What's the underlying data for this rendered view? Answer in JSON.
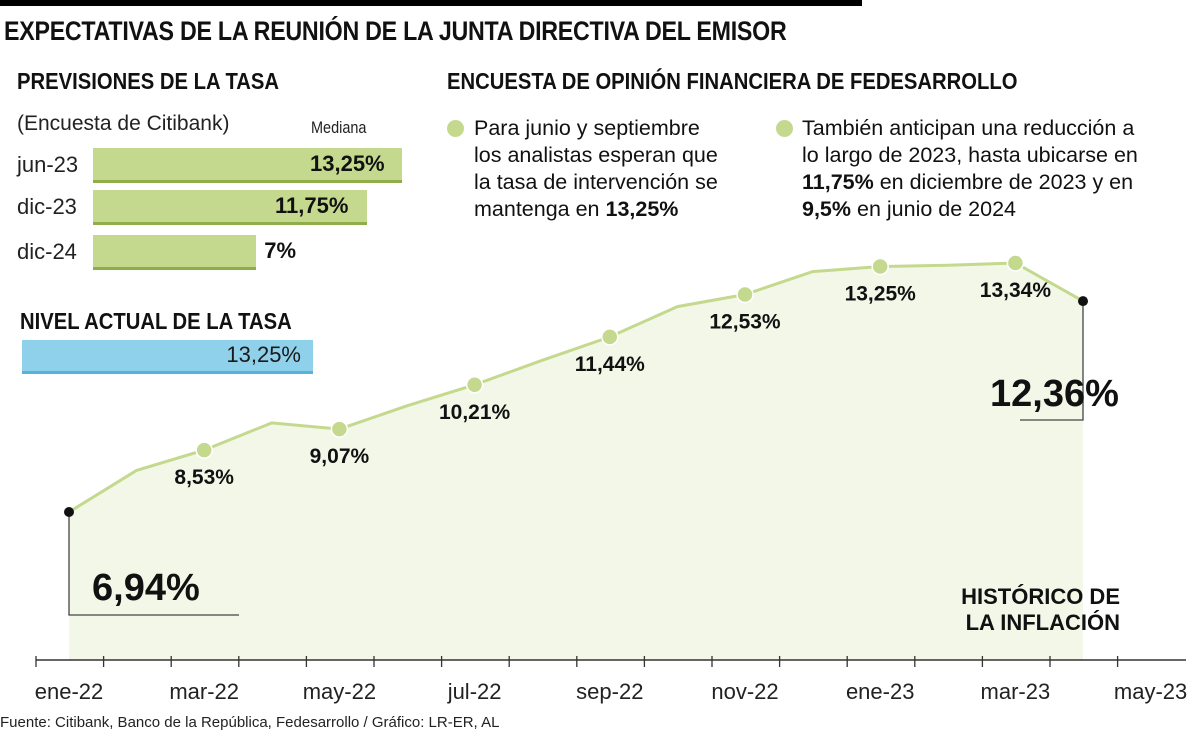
{
  "title": "EXPECTATIVAS DE LA REUNIÓN DE LA JUNTA DIRECTIVA DEL EMISOR",
  "forecast": {
    "heading": "PREVISIONES DE LA TASA",
    "subtitle": "(Encuesta de Citibank)",
    "median_label": "Mediana",
    "rows": [
      {
        "label": "jun-23",
        "value": 13.25,
        "value_text": "13,25%"
      },
      {
        "label": "dic-23",
        "value": 11.75,
        "value_text": "11,75%"
      },
      {
        "label": "dic-24",
        "value": 7,
        "value_text": "7%"
      }
    ]
  },
  "current": {
    "heading": "NIVEL ACTUAL DE LA TASA",
    "value": 13.25,
    "value_text": "13,25%"
  },
  "survey": {
    "heading": "ENCUESTA DE OPINIÓN FINANCIERA DE FEDESARROLLO",
    "point1": {
      "l1": "Para junio y septiembre",
      "l2": "los analistas esperan que",
      "l3": "la tasa de intervención se",
      "l4": "mantenga en",
      "l4b": "13,25%"
    },
    "point2": {
      "l1": "También anticipan una reducción a",
      "l2": "lo largo de 2023, hasta ubicarse en",
      "l3b": "11,75%",
      "l3": " en diciembre de 2023 y en",
      "l4b": "9,5%",
      "l4": " en junio de 2024"
    }
  },
  "chart_data": {
    "type": "area",
    "title": "HISTÓRICO DE LA INFLACIÓN",
    "title_line1": "HISTÓRICO DE",
    "title_line2": "LA INFLACIÓN",
    "x_tick_labels": [
      "ene-22",
      "mar-22",
      "may-22",
      "jul-22",
      "sep-22",
      "nov-22",
      "ene-23",
      "mar-23",
      "may-23"
    ],
    "x": [
      "ene-22",
      "feb-22",
      "mar-22",
      "abr-22",
      "may-22",
      "jun-22",
      "jul-22",
      "ago-22",
      "sep-22",
      "oct-22",
      "nov-22",
      "dic-22",
      "ene-23",
      "feb-23",
      "mar-23",
      "abr-23"
    ],
    "values": [
      6.94,
      8.01,
      8.53,
      9.23,
      9.07,
      9.67,
      10.21,
      10.84,
      11.44,
      12.22,
      12.53,
      13.12,
      13.25,
      13.28,
      13.34,
      12.36
    ],
    "labeled_points": [
      {
        "index": 2,
        "text": "8,53%"
      },
      {
        "index": 4,
        "text": "9,07%"
      },
      {
        "index": 6,
        "text": "10,21%"
      },
      {
        "index": 8,
        "text": "11,44%"
      },
      {
        "index": 10,
        "text": "12,53%"
      },
      {
        "index": 12,
        "text": "13,25%"
      },
      {
        "index": 14,
        "text": "13,34%"
      }
    ],
    "start_label": "6,94%",
    "end_label": "12,36%",
    "ylim": [
      0,
      14
    ]
  },
  "source": "Fuente: Citibank, Banco de la República, Fedesarrollo / Gráfico: LR-ER, AL",
  "colors": {
    "green": "#c4d98d",
    "green_dark": "#8fae4a",
    "blue": "#8fd0ea",
    "area": "#f1f6e6"
  }
}
